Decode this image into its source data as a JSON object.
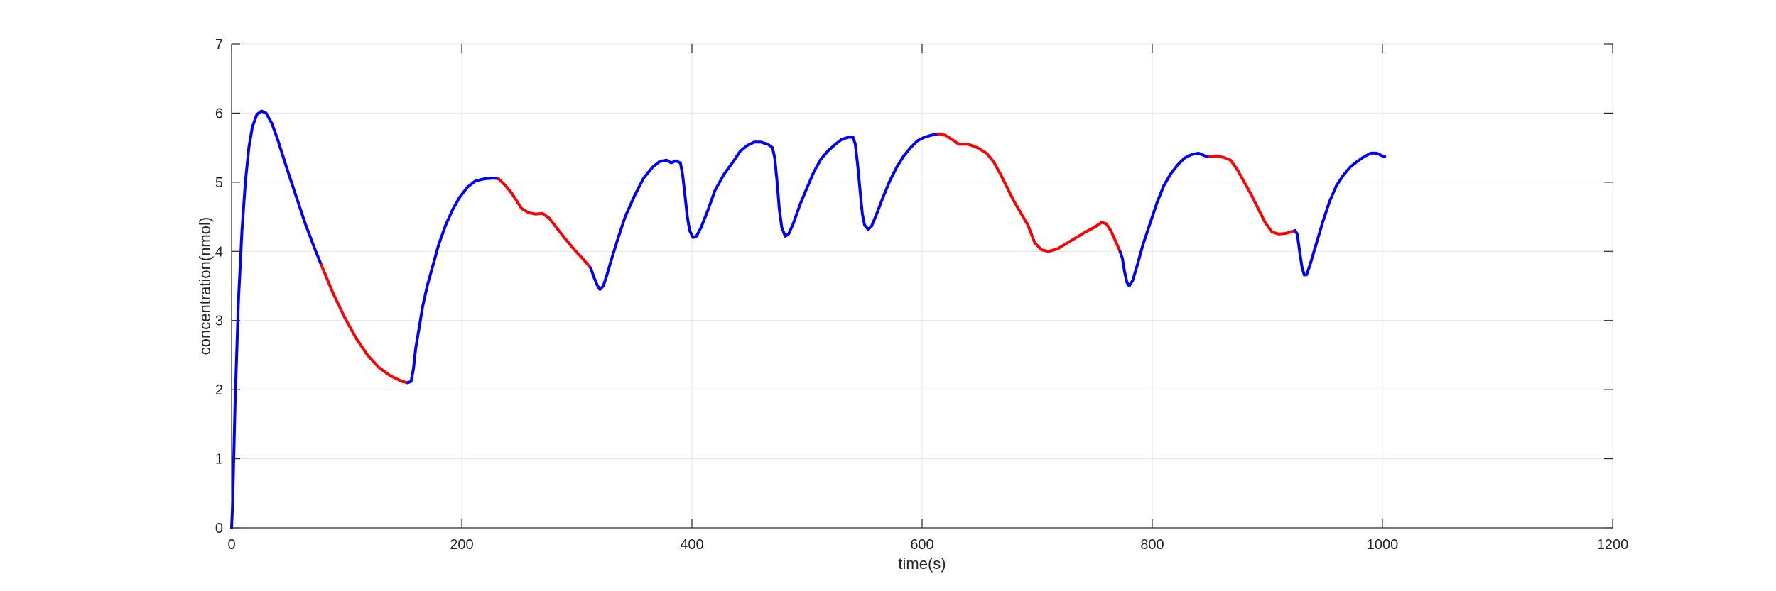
{
  "chart_data": {
    "type": "line",
    "title": "",
    "xlabel": "time(s)",
    "ylabel": "concentration(nmol)",
    "xlim": [
      0,
      1200
    ],
    "ylim": [
      0,
      7
    ],
    "xticks": [
      0,
      200,
      400,
      600,
      800,
      1000,
      1200
    ],
    "yticks": [
      0,
      1,
      2,
      3,
      4,
      5,
      6,
      7
    ],
    "grid": true,
    "colors": {
      "blue": "#0000ff",
      "red": "#ff0000"
    },
    "segments": [
      {
        "color": "blue",
        "points": [
          [
            0,
            0
          ],
          [
            1,
            0.4
          ],
          [
            3,
            1.8
          ],
          [
            6,
            3.3
          ],
          [
            9,
            4.3
          ],
          [
            12,
            5.0
          ],
          [
            15,
            5.5
          ],
          [
            18,
            5.8
          ],
          [
            22,
            5.98
          ],
          [
            26,
            6.03
          ],
          [
            30,
            6.0
          ],
          [
            35,
            5.85
          ],
          [
            40,
            5.62
          ],
          [
            48,
            5.2
          ],
          [
            56,
            4.8
          ],
          [
            64,
            4.4
          ],
          [
            72,
            4.05
          ],
          [
            78,
            3.8
          ]
        ]
      },
      {
        "color": "red",
        "points": [
          [
            78,
            3.8
          ],
          [
            88,
            3.4
          ],
          [
            98,
            3.05
          ],
          [
            108,
            2.75
          ],
          [
            118,
            2.5
          ],
          [
            128,
            2.32
          ],
          [
            138,
            2.2
          ],
          [
            148,
            2.12
          ],
          [
            153,
            2.1
          ]
        ]
      },
      {
        "color": "blue",
        "points": [
          [
            153,
            2.1
          ],
          [
            156,
            2.12
          ],
          [
            158,
            2.3
          ],
          [
            160,
            2.6
          ],
          [
            163,
            2.9
          ],
          [
            166,
            3.2
          ],
          [
            170,
            3.5
          ],
          [
            175,
            3.8
          ],
          [
            180,
            4.1
          ],
          [
            186,
            4.38
          ],
          [
            192,
            4.6
          ],
          [
            198,
            4.78
          ],
          [
            205,
            4.93
          ],
          [
            212,
            5.02
          ],
          [
            220,
            5.05
          ],
          [
            228,
            5.06
          ],
          [
            232,
            5.05
          ]
        ]
      },
      {
        "color": "red",
        "points": [
          [
            232,
            5.05
          ],
          [
            238,
            4.95
          ],
          [
            243,
            4.85
          ],
          [
            247,
            4.75
          ],
          [
            252,
            4.62
          ],
          [
            258,
            4.56
          ],
          [
            264,
            4.54
          ],
          [
            270,
            4.55
          ],
          [
            276,
            4.48
          ],
          [
            282,
            4.35
          ],
          [
            290,
            4.18
          ],
          [
            298,
            4.02
          ],
          [
            306,
            3.88
          ],
          [
            312,
            3.76
          ]
        ]
      },
      {
        "color": "blue",
        "points": [
          [
            312,
            3.76
          ],
          [
            315,
            3.62
          ],
          [
            318,
            3.5
          ],
          [
            320,
            3.45
          ],
          [
            323,
            3.5
          ],
          [
            326,
            3.65
          ],
          [
            330,
            3.88
          ],
          [
            336,
            4.2
          ],
          [
            342,
            4.5
          ],
          [
            350,
            4.8
          ],
          [
            358,
            5.06
          ],
          [
            366,
            5.22
          ],
          [
            372,
            5.3
          ],
          [
            378,
            5.32
          ],
          [
            382,
            5.28
          ],
          [
            386,
            5.31
          ],
          [
            390,
            5.28
          ],
          [
            392,
            5.1
          ],
          [
            394,
            4.8
          ],
          [
            396,
            4.5
          ],
          [
            398,
            4.3
          ],
          [
            401,
            4.2
          ],
          [
            404,
            4.22
          ],
          [
            408,
            4.35
          ],
          [
            414,
            4.6
          ],
          [
            420,
            4.88
          ],
          [
            428,
            5.12
          ],
          [
            436,
            5.3
          ],
          [
            442,
            5.45
          ],
          [
            448,
            5.53
          ],
          [
            454,
            5.58
          ],
          [
            460,
            5.58
          ],
          [
            466,
            5.55
          ],
          [
            470,
            5.5
          ],
          [
            472,
            5.35
          ],
          [
            474,
            5.0
          ],
          [
            476,
            4.6
          ],
          [
            478,
            4.35
          ],
          [
            481,
            4.22
          ],
          [
            484,
            4.25
          ],
          [
            488,
            4.4
          ],
          [
            494,
            4.68
          ],
          [
            500,
            4.92
          ],
          [
            506,
            5.15
          ],
          [
            512,
            5.33
          ],
          [
            518,
            5.45
          ],
          [
            524,
            5.54
          ],
          [
            530,
            5.62
          ],
          [
            536,
            5.65
          ],
          [
            540,
            5.65
          ],
          [
            542,
            5.55
          ],
          [
            544,
            5.25
          ],
          [
            546,
            4.9
          ],
          [
            548,
            4.55
          ],
          [
            550,
            4.38
          ],
          [
            553,
            4.32
          ],
          [
            556,
            4.36
          ],
          [
            560,
            4.52
          ],
          [
            566,
            4.78
          ],
          [
            572,
            5.02
          ],
          [
            578,
            5.22
          ],
          [
            584,
            5.38
          ],
          [
            590,
            5.5
          ],
          [
            596,
            5.6
          ],
          [
            602,
            5.65
          ],
          [
            608,
            5.68
          ],
          [
            614,
            5.7
          ]
        ]
      },
      {
        "color": "red",
        "points": [
          [
            614,
            5.7
          ],
          [
            620,
            5.68
          ],
          [
            626,
            5.62
          ],
          [
            632,
            5.55
          ],
          [
            640,
            5.55
          ],
          [
            648,
            5.5
          ],
          [
            656,
            5.42
          ],
          [
            662,
            5.3
          ],
          [
            668,
            5.12
          ],
          [
            674,
            4.92
          ],
          [
            680,
            4.72
          ],
          [
            686,
            4.55
          ],
          [
            692,
            4.38
          ],
          [
            698,
            4.12
          ],
          [
            704,
            4.02
          ],
          [
            710,
            4.0
          ],
          [
            718,
            4.04
          ],
          [
            726,
            4.12
          ],
          [
            734,
            4.2
          ],
          [
            742,
            4.28
          ],
          [
            750,
            4.35
          ],
          [
            756,
            4.42
          ],
          [
            760,
            4.4
          ],
          [
            764,
            4.3
          ],
          [
            768,
            4.15
          ],
          [
            772,
            4.0
          ]
        ]
      },
      {
        "color": "blue",
        "points": [
          [
            772,
            4.0
          ],
          [
            774,
            3.9
          ],
          [
            776,
            3.7
          ],
          [
            778,
            3.55
          ],
          [
            780,
            3.5
          ],
          [
            783,
            3.58
          ],
          [
            787,
            3.8
          ],
          [
            792,
            4.1
          ],
          [
            798,
            4.4
          ],
          [
            804,
            4.7
          ],
          [
            810,
            4.95
          ],
          [
            816,
            5.12
          ],
          [
            822,
            5.25
          ],
          [
            828,
            5.35
          ],
          [
            834,
            5.4
          ],
          [
            840,
            5.42
          ],
          [
            846,
            5.38
          ],
          [
            850,
            5.37
          ]
        ]
      },
      {
        "color": "red",
        "points": [
          [
            850,
            5.37
          ],
          [
            856,
            5.38
          ],
          [
            862,
            5.36
          ],
          [
            868,
            5.32
          ],
          [
            874,
            5.18
          ],
          [
            880,
            5.0
          ],
          [
            886,
            4.82
          ],
          [
            892,
            4.62
          ],
          [
            898,
            4.42
          ],
          [
            904,
            4.28
          ],
          [
            910,
            4.25
          ],
          [
            916,
            4.26
          ],
          [
            920,
            4.28
          ],
          [
            924,
            4.3
          ]
        ]
      },
      {
        "color": "blue",
        "points": [
          [
            924,
            4.3
          ],
          [
            926,
            4.25
          ],
          [
            928,
            4.0
          ],
          [
            930,
            3.78
          ],
          [
            932,
            3.66
          ],
          [
            934,
            3.66
          ],
          [
            937,
            3.8
          ],
          [
            942,
            4.08
          ],
          [
            948,
            4.42
          ],
          [
            954,
            4.72
          ],
          [
            960,
            4.95
          ],
          [
            966,
            5.1
          ],
          [
            972,
            5.22
          ],
          [
            978,
            5.3
          ],
          [
            984,
            5.37
          ],
          [
            990,
            5.42
          ],
          [
            995,
            5.42
          ],
          [
            1000,
            5.38
          ],
          [
            1002,
            5.37
          ]
        ]
      }
    ]
  }
}
